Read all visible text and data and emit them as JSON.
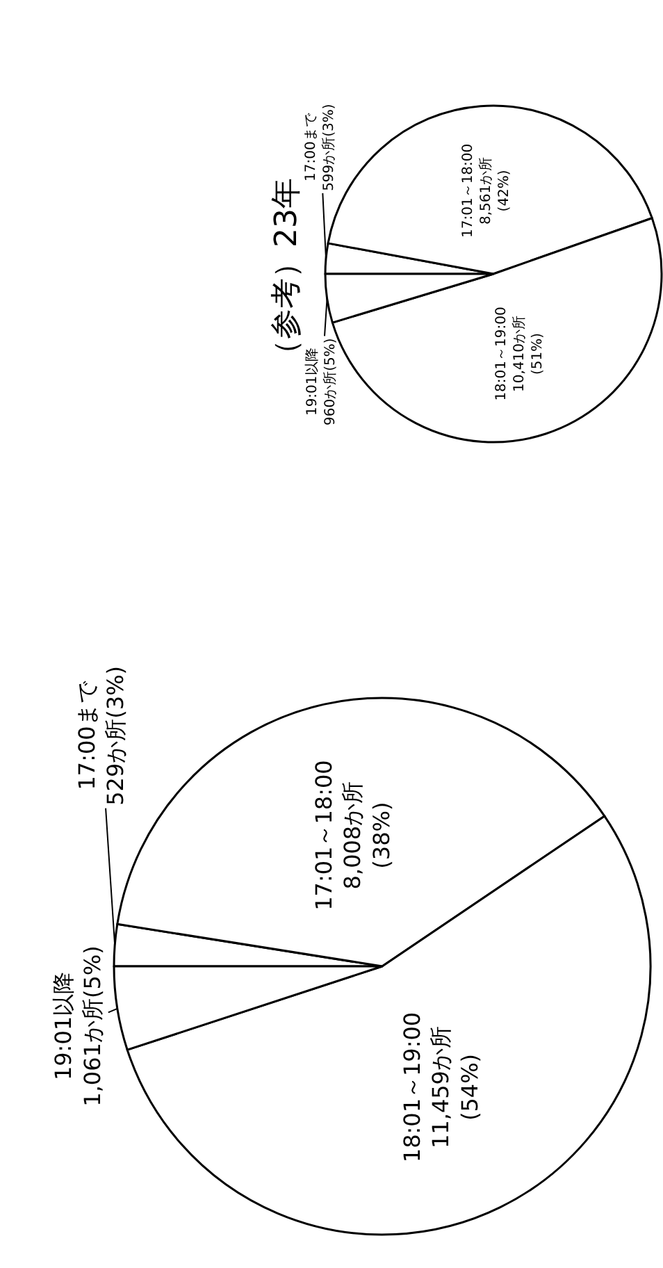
{
  "chart_data": [
    {
      "type": "pie",
      "categories": [
        "17:00まで",
        "17:01～18:00",
        "18:01～19:00",
        "19:01以降"
      ],
      "values": [
        529,
        8008,
        11459,
        1061
      ],
      "value_labels": [
        "529か所(3%)",
        "8,008か所\n(38%)",
        "11,459か所\n(54%)",
        "1,061か所(5%)"
      ],
      "colors": [
        "#ffffff",
        "#ffffff",
        "#ffffff",
        "#ffffff"
      ]
    },
    {
      "type": "pie",
      "title": "（参考）23年",
      "categories": [
        "17:00まで",
        "17:01～18:00",
        "18:01～19:00",
        "19:01以降"
      ],
      "values": [
        599,
        8561,
        10410,
        960
      ],
      "value_labels": [
        "599か所(3%)",
        "8,561か所\n(42%)",
        "10,410か所\n(51%)",
        "960か所(5%)"
      ],
      "colors": [
        "#ffffff",
        "#ffffff",
        "#ffffff",
        "#ffffff"
      ]
    }
  ]
}
